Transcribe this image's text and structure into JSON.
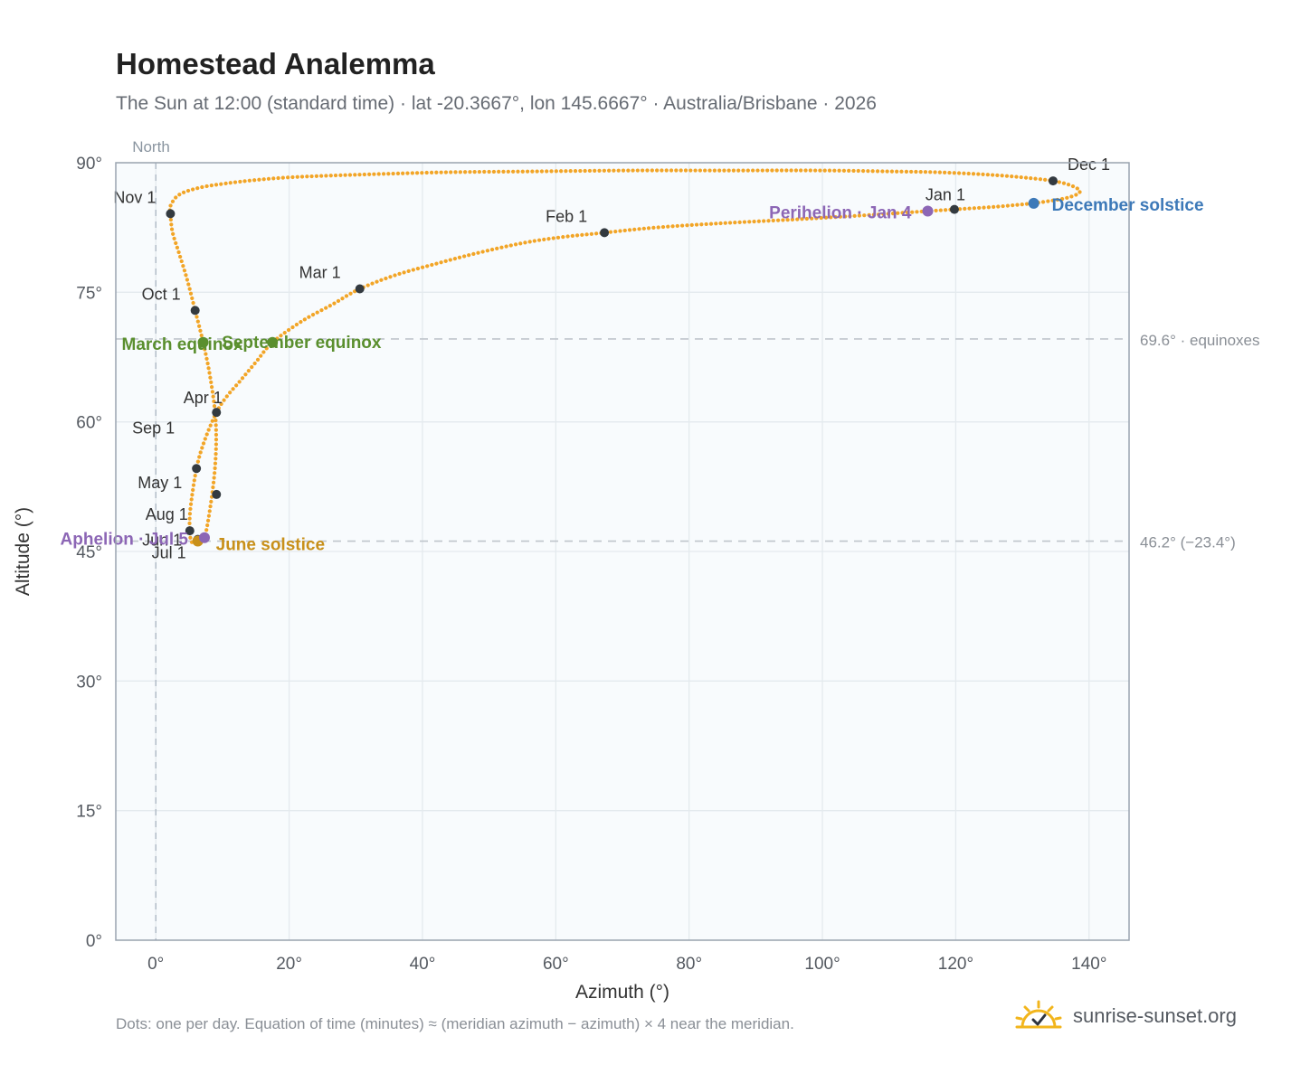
{
  "title": "Homestead Analemma",
  "subtitle": "The Sun at 12:00 (standard time) · lat -20.3667°, lon 145.6667° · Australia/Brisbane · 2026",
  "footnote": "Dots: one per day. Equation of time (minutes) ≈ (meridian azimuth − azimuth) × 4 near the meridian.",
  "brand": {
    "name": "sunrise-sunset.org",
    "logo_icon": "sun-check-icon"
  },
  "colors": {
    "curve": "#f2a527",
    "month": "#333a40",
    "equinox": "#5a8f2e",
    "june": "#c8901a",
    "december": "#3d79b8",
    "apsis": "#8c66b5",
    "plot_bg": "#f8fbfd",
    "grid": "#e4eaee",
    "frame": "#9aa4b0",
    "ref_line": "#bfc5cc"
  },
  "chart_data": {
    "type": "scatter",
    "xlabel": "Azimuth (°)",
    "ylabel": "Altitude (°)",
    "xlim": [
      -6,
      146
    ],
    "ylim": [
      0,
      90
    ],
    "x_ticks": [
      0,
      20,
      40,
      60,
      80,
      100,
      120,
      140
    ],
    "y_ticks": [
      0,
      15,
      30,
      45,
      60,
      75,
      90
    ],
    "x_tick_labels": [
      "0°",
      "20°",
      "40°",
      "60°",
      "80°",
      "100°",
      "120°",
      "140°"
    ],
    "y_tick_labels": [
      "0°",
      "15°",
      "30°",
      "45°",
      "60°",
      "75°",
      "90°"
    ],
    "grid": true,
    "meridian": {
      "azimuth": 0,
      "label": "North"
    },
    "reference_lines": [
      {
        "altitude": 69.6,
        "label": "69.6° · equinoxes"
      },
      {
        "altitude": 46.2,
        "label": "46.2° (−23.4°)"
      }
    ],
    "curve": [
      [
        131.7,
        85.3
      ],
      [
        136.5,
        85.9
      ],
      [
        138.6,
        86.6
      ],
      [
        137.5,
        87.3
      ],
      [
        134.6,
        87.9
      ],
      [
        130.0,
        88.3
      ],
      [
        127.0,
        88.5
      ],
      [
        123.0,
        88.7
      ],
      [
        117.0,
        88.9
      ],
      [
        110.0,
        89.0
      ],
      [
        100.0,
        89.1
      ],
      [
        86.0,
        89.1
      ],
      [
        71.0,
        89.1
      ],
      [
        57.0,
        89.0
      ],
      [
        44.0,
        88.9
      ],
      [
        34.0,
        88.7
      ],
      [
        26.0,
        88.5
      ],
      [
        20.0,
        88.3
      ],
      [
        15.0,
        88.0
      ],
      [
        10.5,
        87.6
      ],
      [
        6.5,
        87.1
      ],
      [
        3.5,
        86.3
      ],
      [
        2.2,
        85.0
      ],
      [
        2.2,
        84.1
      ],
      [
        2.5,
        82.0
      ],
      [
        3.5,
        79.5
      ],
      [
        4.7,
        76.5
      ],
      [
        5.9,
        72.9
      ],
      [
        7.1,
        69.2
      ],
      [
        8.2,
        65.0
      ],
      [
        9.0,
        60.0
      ],
      [
        8.9,
        54.9
      ],
      [
        8.0,
        49.3
      ],
      [
        7.1,
        46.3
      ],
      [
        5.5,
        46.0
      ],
      [
        5.1,
        47.4
      ],
      [
        5.2,
        50.0
      ],
      [
        6.1,
        54.6
      ],
      [
        7.3,
        57.8
      ],
      [
        9.1,
        61.1
      ],
      [
        10.7,
        63.0
      ],
      [
        12.6,
        64.7
      ],
      [
        15.0,
        66.9
      ],
      [
        17.5,
        69.2
      ],
      [
        22.0,
        71.7
      ],
      [
        26.5,
        73.6
      ],
      [
        30.6,
        75.4
      ],
      [
        36.0,
        77.0
      ],
      [
        42.0,
        78.3
      ],
      [
        48.0,
        79.5
      ],
      [
        55.0,
        80.7
      ],
      [
        61.0,
        81.4
      ],
      [
        67.3,
        81.9
      ],
      [
        75.0,
        82.5
      ],
      [
        85.0,
        83.0
      ],
      [
        95.0,
        83.4
      ],
      [
        104.0,
        83.8
      ],
      [
        112.0,
        84.2
      ],
      [
        115.8,
        84.4
      ],
      [
        119.8,
        84.6
      ],
      [
        126.0,
        84.9
      ],
      [
        131.7,
        85.3
      ]
    ],
    "month_markers": [
      {
        "label": "Jan 1",
        "az": 119.8,
        "alt": 84.6
      },
      {
        "label": "Feb 1",
        "az": 67.3,
        "alt": 81.9
      },
      {
        "label": "Mar 1",
        "az": 30.6,
        "alt": 75.4
      },
      {
        "label": "Apr 1",
        "az": 9.1,
        "alt": 61.1
      },
      {
        "label": "May 1",
        "az": 9.1,
        "alt": 51.6
      },
      {
        "label": "Jul 1",
        "az": 6.3,
        "alt": 46.4
      },
      {
        "label": "Jun 1",
        "az": 6.1,
        "alt": 46.6
      },
      {
        "label": "Aug 1",
        "az": 5.1,
        "alt": 47.4
      },
      {
        "label": "Sep 1",
        "az": 6.1,
        "alt": 54.6
      },
      {
        "label": "Oct 1",
        "az": 5.9,
        "alt": 72.9
      },
      {
        "label": "Nov 1",
        "az": 2.2,
        "alt": 84.1
      },
      {
        "label": "Dec 1",
        "az": 134.6,
        "alt": 87.9
      }
    ],
    "events": [
      {
        "label": "March equinox",
        "az": 7.1,
        "alt": 69.2,
        "kind": "equinox"
      },
      {
        "label": "September equinox",
        "az": 17.5,
        "alt": 69.2,
        "kind": "equinox"
      },
      {
        "label": "June solstice",
        "az": 6.3,
        "alt": 46.2,
        "kind": "june"
      },
      {
        "label": "December solstice",
        "az": 131.7,
        "alt": 85.3,
        "kind": "december"
      },
      {
        "label": "Aphelion · Jul 5",
        "az": 7.3,
        "alt": 46.6,
        "kind": "apsis"
      },
      {
        "label": "Perihelion · Jan 4",
        "az": 115.8,
        "alt": 84.4,
        "kind": "apsis"
      }
    ]
  }
}
